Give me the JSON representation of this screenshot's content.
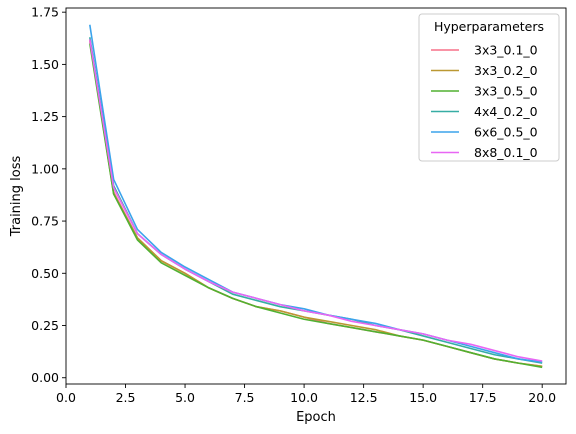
{
  "chart_data": {
    "type": "line",
    "xlabel": "Epoch",
    "ylabel": "Training loss",
    "xlim": [
      0.0,
      21.0
    ],
    "ylim": [
      -0.03,
      1.77
    ],
    "xticks": [
      0.0,
      2.5,
      5.0,
      7.5,
      10.0,
      12.5,
      15.0,
      17.5,
      20.0
    ],
    "xtick_labels": [
      "0.0",
      "2.5",
      "5.0",
      "7.5",
      "10.0",
      "12.5",
      "15.0",
      "17.5",
      "20.0"
    ],
    "yticks": [
      0.0,
      0.25,
      0.5,
      0.75,
      1.0,
      1.25,
      1.5,
      1.75
    ],
    "ytick_labels": [
      "0.00",
      "0.25",
      "0.50",
      "0.75",
      "1.00",
      "1.25",
      "1.50",
      "1.75"
    ],
    "grid": false,
    "legend": {
      "title": "Hyperparameters",
      "placement": "top-right"
    },
    "x": [
      1,
      2,
      3,
      4,
      5,
      6,
      7,
      8,
      9,
      10,
      11,
      12,
      13,
      14,
      15,
      16,
      17,
      18,
      19,
      20
    ],
    "series": [
      {
        "name": "3x3_0.1_0",
        "color": "#f77189",
        "values": [
          1.61,
          0.89,
          0.67,
          0.56,
          0.5,
          0.43,
          0.38,
          0.34,
          0.32,
          0.29,
          0.26,
          0.24,
          0.22,
          0.2,
          0.18,
          0.15,
          0.12,
          0.09,
          0.07,
          0.055
        ]
      },
      {
        "name": "3x3_0.2_0",
        "color": "#bb9832",
        "values": [
          1.62,
          0.88,
          0.67,
          0.56,
          0.5,
          0.43,
          0.38,
          0.34,
          0.32,
          0.29,
          0.27,
          0.25,
          0.23,
          0.2,
          0.18,
          0.15,
          0.12,
          0.09,
          0.07,
          0.055
        ]
      },
      {
        "name": "3x3_0.5_0",
        "color": "#50b131",
        "values": [
          1.6,
          0.88,
          0.66,
          0.55,
          0.49,
          0.43,
          0.38,
          0.34,
          0.31,
          0.28,
          0.26,
          0.24,
          0.22,
          0.2,
          0.18,
          0.15,
          0.12,
          0.09,
          0.07,
          0.05
        ]
      },
      {
        "name": "4x4_0.2_0",
        "color": "#36ada4",
        "values": [
          1.63,
          0.92,
          0.69,
          0.59,
          0.52,
          0.46,
          0.4,
          0.37,
          0.34,
          0.32,
          0.3,
          0.28,
          0.25,
          0.23,
          0.2,
          0.17,
          0.14,
          0.11,
          0.09,
          0.07
        ]
      },
      {
        "name": "6x6_0.5_0",
        "color": "#3ba3ec",
        "values": [
          1.69,
          0.95,
          0.71,
          0.6,
          0.53,
          0.47,
          0.41,
          0.38,
          0.35,
          0.33,
          0.3,
          0.28,
          0.26,
          0.23,
          0.21,
          0.18,
          0.15,
          0.12,
          0.09,
          0.075
        ]
      },
      {
        "name": "8x8_0.1_0",
        "color": "#e866f4",
        "values": [
          1.62,
          0.91,
          0.69,
          0.59,
          0.52,
          0.46,
          0.41,
          0.38,
          0.35,
          0.32,
          0.3,
          0.27,
          0.25,
          0.23,
          0.21,
          0.18,
          0.16,
          0.13,
          0.1,
          0.08
        ]
      }
    ]
  }
}
